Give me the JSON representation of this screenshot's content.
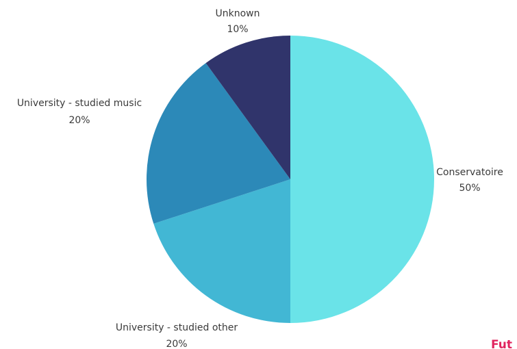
{
  "chart_data": {
    "type": "pie",
    "title": "",
    "slices": [
      {
        "label": "Conservatoire",
        "value": 50,
        "value_label": "50%",
        "color": "#6ae3e8"
      },
      {
        "label": "University - studied other",
        "value": 20,
        "value_label": "20%",
        "color": "#42b7d4"
      },
      {
        "label": "University - studied music",
        "value": 20,
        "value_label": "20%",
        "color": "#2c89b8"
      },
      {
        "label": "Unknown",
        "value": 10,
        "value_label": "10%",
        "color": "#30346b"
      }
    ],
    "start": "12 o'clock",
    "direction": "clockwise"
  },
  "brand": {
    "text": "Fut",
    "color": "#e0245e"
  }
}
